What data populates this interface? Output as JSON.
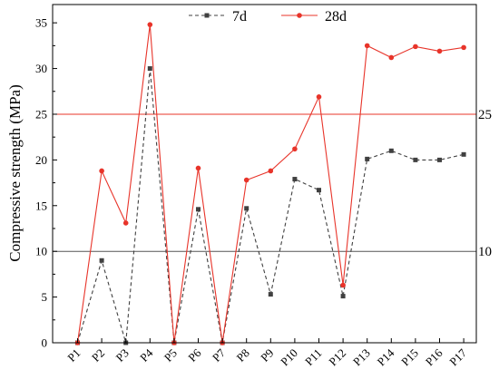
{
  "chart_data": {
    "type": "line",
    "categories": [
      "P1",
      "P2",
      "P3",
      "P4",
      "P5",
      "P6",
      "P7",
      "P8",
      "P9",
      "P10",
      "P11",
      "P12",
      "P13",
      "P14",
      "P15",
      "P16",
      "P17"
    ],
    "series": [
      {
        "name": "7d",
        "values": [
          0,
          9.0,
          0,
          30.0,
          0,
          14.6,
          0,
          14.7,
          5.3,
          17.9,
          16.7,
          5.1,
          20.1,
          21.0,
          20.0,
          20.0,
          20.6
        ],
        "color": "#404040",
        "line_style": "dashed",
        "marker": "square"
      },
      {
        "name": "28d",
        "values": [
          0,
          18.8,
          13.1,
          34.8,
          0,
          19.1,
          0,
          17.8,
          18.8,
          21.2,
          26.9,
          6.3,
          32.5,
          31.2,
          32.4,
          31.9,
          32.3
        ],
        "color": "#e8342a",
        "line_style": "solid",
        "marker": "circle"
      }
    ],
    "reference_lines": [
      {
        "value": 25,
        "label": "25",
        "color": "#e8342a"
      },
      {
        "value": 10,
        "label": "10",
        "color": "#555555"
      }
    ],
    "ylabel": "Compressive strength (MPa)",
    "xlabel": "",
    "ylim": [
      0,
      37
    ],
    "yticks": [
      0,
      5,
      10,
      15,
      20,
      25,
      30,
      35
    ],
    "grid": false,
    "legend_position": "top-center"
  }
}
